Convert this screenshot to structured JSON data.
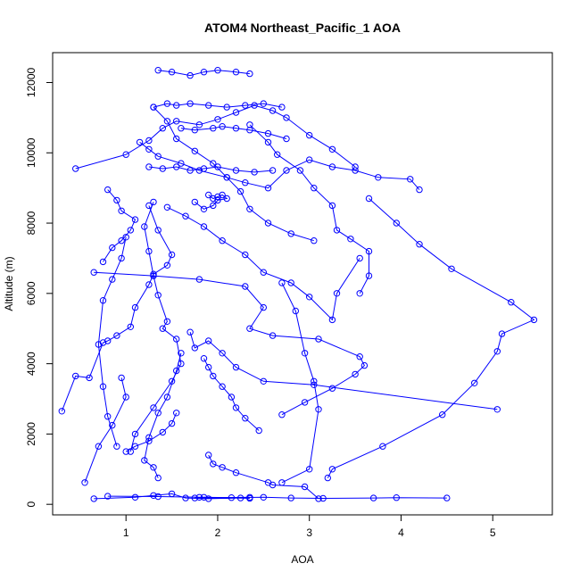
{
  "chart_data": {
    "type": "scatter",
    "title": "ATOM4 Northeast_Pacific_1 AOA",
    "xlabel": "AOA",
    "ylabel": "Altitude (m)",
    "xlim": [
      0.2,
      5.65
    ],
    "ylim": [
      -300,
      12850
    ],
    "x_ticks": [
      1,
      2,
      3,
      4,
      5
    ],
    "y_ticks": [
      0,
      2000,
      4000,
      6000,
      8000,
      10000,
      12000
    ],
    "color": "#0000ff",
    "series": [
      {
        "x": [
          0.65,
          1.1,
          1.3,
          1.5,
          1.65,
          1.9,
          2.25,
          2.35,
          1.85,
          1.75,
          2.35
        ],
        "y": [
          160,
          200,
          250,
          300,
          180,
          160,
          180,
          170,
          200,
          180,
          200
        ]
      },
      {
        "x": [
          3.1,
          2.95,
          2.6,
          2.55,
          2.2,
          2.05,
          1.95,
          1.9
        ],
        "y": [
          160,
          500,
          550,
          620,
          900,
          1050,
          1150,
          1400
        ]
      },
      {
        "x": [
          0.55,
          0.7,
          0.85,
          1.0,
          0.95
        ],
        "y": [
          620,
          1650,
          2250,
          3050,
          3600
        ]
      },
      {
        "x": [
          0.9,
          0.8,
          0.75,
          0.7,
          0.75,
          0.85,
          0.95,
          1.0
        ],
        "y": [
          1650,
          2500,
          3350,
          4550,
          5800,
          6400,
          7000,
          7600
        ]
      },
      {
        "x": [
          0.3,
          0.45,
          0.6,
          0.75,
          0.8,
          0.9,
          1.05,
          1.1,
          1.25,
          1.3,
          1.45,
          1.5,
          1.35,
          1.25
        ],
        "y": [
          2650,
          3650,
          3600,
          4600,
          4650,
          4800,
          5050,
          5600,
          6250,
          6550,
          6800,
          7100,
          7800,
          8500
        ]
      },
      {
        "x": [
          1.05,
          1.1,
          1.3,
          1.5,
          1.6,
          1.55,
          1.4,
          1.45,
          1.35,
          1.3,
          1.25,
          1.2,
          1.3
        ],
        "y": [
          1500,
          2000,
          2750,
          3500,
          4000,
          4700,
          5000,
          5200,
          5950,
          6500,
          7200,
          7900,
          8600
        ]
      },
      {
        "x": [
          1.35,
          1.3,
          1.2,
          1.25,
          1.35,
          1.45,
          1.55,
          1.6
        ],
        "y": [
          750,
          1050,
          1250,
          1900,
          2600,
          3050,
          3800,
          4300
        ]
      },
      {
        "x": [
          2.7,
          3.0,
          3.1,
          3.05,
          2.95,
          2.85,
          2.7
        ],
        "y": [
          620,
          1000,
          2700,
          3500,
          4300,
          5500,
          6300
        ]
      },
      {
        "x": [
          3.2,
          3.25,
          3.8,
          4.45,
          4.8,
          5.05,
          5.1,
          5.45,
          5.2,
          4.55,
          4.2,
          3.95,
          3.65
        ],
        "y": [
          750,
          1000,
          1650,
          2550,
          3450,
          4350,
          4850,
          5250,
          5750,
          6700,
          7400,
          8000,
          8700
        ]
      },
      {
        "x": [
          5.05,
          3.05,
          2.5,
          2.2,
          2.05,
          1.9,
          1.75,
          1.7
        ],
        "y": [
          2700,
          3400,
          3500,
          3900,
          4300,
          4650,
          4450,
          4900
        ]
      },
      {
        "x": [
          1.55,
          1.5,
          1.4,
          1.25,
          1.1,
          1.0
        ],
        "y": [
          2600,
          2300,
          2050,
          1800,
          1650,
          1500
        ]
      },
      {
        "x": [
          0.65,
          1.3,
          1.8,
          2.3,
          2.5,
          2.35,
          2.6,
          3.1,
          3.55,
          3.6,
          3.5,
          3.25,
          2.95,
          2.7
        ],
        "y": [
          6600,
          6500,
          6400,
          6200,
          5600,
          5000,
          4800,
          4700,
          4200,
          3950,
          3700,
          3300,
          2900,
          2550
        ]
      },
      {
        "x": [
          1.45,
          1.65,
          1.85,
          2.05,
          2.3,
          2.5,
          2.8,
          3.0,
          3.25,
          3.3,
          3.55
        ],
        "y": [
          8450,
          8200,
          7900,
          7500,
          7100,
          6600,
          6300,
          5900,
          5250,
          6000,
          7000
        ]
      },
      {
        "x": [
          1.3,
          1.45,
          1.55,
          1.75,
          1.95,
          2.1,
          2.25,
          2.35,
          2.55,
          2.8,
          3.05
        ],
        "y": [
          11300,
          10900,
          10400,
          10050,
          9700,
          9300,
          8900,
          8400,
          8000,
          7700,
          7500
        ]
      },
      {
        "x": [
          2.35,
          2.55,
          2.65,
          2.9,
          3.05,
          3.25,
          3.3,
          3.45,
          3.65,
          3.65,
          3.55
        ],
        "y": [
          10800,
          10300,
          9950,
          9500,
          9000,
          8500,
          7800,
          7550,
          7200,
          6500,
          6000
        ]
      },
      {
        "x": [
          1.15,
          1.25,
          1.35,
          1.6,
          1.8,
          2.1,
          2.3,
          2.55,
          2.75,
          3.0,
          3.25,
          3.5,
          3.75,
          4.1,
          4.2
        ],
        "y": [
          10300,
          10100,
          9900,
          9700,
          9500,
          9300,
          9150,
          9000,
          9500,
          9800,
          9600,
          9500,
          9300,
          9250,
          8950
        ]
      },
      {
        "x": [
          0.45,
          1.0,
          1.25,
          1.4,
          1.55,
          1.8,
          2.0,
          2.2,
          2.4,
          2.6,
          2.75,
          3.0,
          3.25,
          3.5
        ],
        "y": [
          9550,
          9950,
          10350,
          10700,
          10900,
          10800,
          10950,
          11150,
          11350,
          11200,
          11000,
          10500,
          10100,
          9600
        ]
      },
      {
        "x": [
          1.3,
          1.45,
          1.55,
          1.7,
          1.9,
          2.1,
          2.3,
          2.5,
          2.7
        ],
        "y": [
          11300,
          11400,
          11350,
          11400,
          11350,
          11300,
          11350,
          11400,
          11300
        ]
      },
      {
        "x": [
          1.35,
          1.5,
          1.7,
          1.85,
          2.0,
          2.2,
          2.35
        ],
        "y": [
          12350,
          12300,
          12200,
          12300,
          12350,
          12300,
          12250
        ]
      },
      {
        "x": [
          1.6,
          1.75,
          1.95,
          2.05,
          2.2,
          2.35,
          2.55,
          2.75
        ],
        "y": [
          10700,
          10650,
          10700,
          10750,
          10700,
          10650,
          10550,
          10400
        ]
      },
      {
        "x": [
          1.25,
          1.4,
          1.55,
          1.7,
          1.85,
          2.0,
          2.2,
          2.4,
          2.6
        ],
        "y": [
          9600,
          9550,
          9600,
          9500,
          9550,
          9600,
          9500,
          9450,
          9500
        ]
      },
      {
        "x": [
          1.9,
          1.95,
          2.0,
          2.05,
          2.1,
          2.0,
          1.95,
          1.85,
          1.75
        ],
        "y": [
          8800,
          8700,
          8750,
          8800,
          8700,
          8650,
          8500,
          8400,
          8600
        ]
      },
      {
        "x": [
          0.8,
          0.9,
          0.95,
          1.1,
          1.05,
          0.95,
          0.85,
          0.75
        ],
        "y": [
          8950,
          8650,
          8350,
          8100,
          7800,
          7500,
          7300,
          6900
        ]
      },
      {
        "x": [
          1.85,
          1.9,
          1.95,
          2.05,
          2.15,
          2.2,
          2.3,
          2.45
        ],
        "y": [
          4150,
          3900,
          3650,
          3350,
          3050,
          2750,
          2450,
          2100
        ]
      },
      {
        "x": [
          0.8,
          1.35,
          1.8,
          2.15,
          2.5,
          2.8,
          3.15,
          3.7,
          3.95,
          4.5
        ],
        "y": [
          230,
          220,
          200,
          190,
          200,
          180,
          170,
          180,
          190,
          180
        ]
      }
    ]
  }
}
